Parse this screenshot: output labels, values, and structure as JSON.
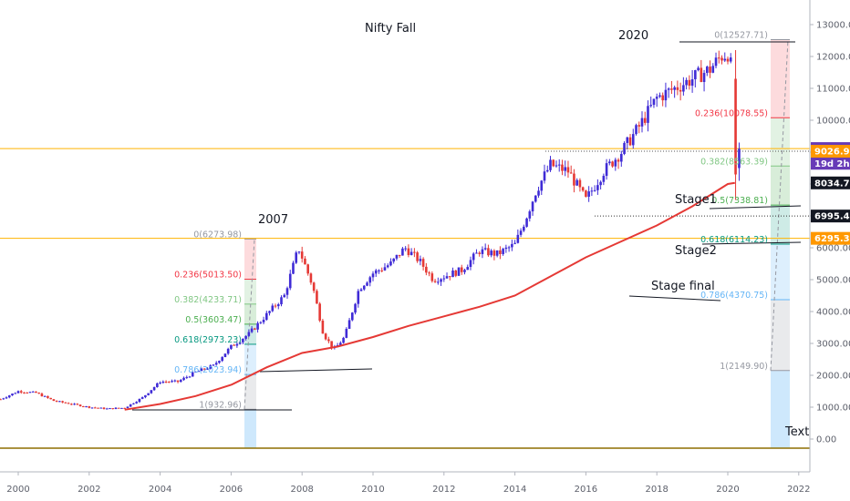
{
  "chart_data": {
    "type": "candlestick",
    "title": "Nifty Fall",
    "y_axis": {
      "ticks": [
        0,
        1000,
        2000,
        3000,
        4000,
        5000,
        6000,
        7000,
        8000,
        9000,
        10000,
        11000,
        12000,
        13000
      ],
      "tick_labels": [
        "0.00",
        "1000.00",
        "2000.00",
        "3000.00",
        "4000.00",
        "5000.00",
        "6000.00",
        "7000.00",
        "8000.00",
        "9000.00",
        "10000.00",
        "11000.00",
        "12000.00",
        "13000.00"
      ],
      "range": [
        -300,
        13600
      ],
      "position": "right"
    },
    "x_axis": {
      "ticks": [
        2000,
        2002,
        2004,
        2006,
        2008,
        2010,
        2012,
        2014,
        2016,
        2018,
        2020,
        2022
      ],
      "tick_labels": [
        "2000",
        "2002",
        "2004",
        "2006",
        "2008",
        "2010",
        "2012",
        "2014",
        "2016",
        "2018",
        "2020",
        "2022"
      ],
      "range": [
        1999.4,
        2022.2
      ]
    },
    "series": [
      {
        "style": "candles",
        "x": [
          1999.5,
          2000.0,
          2000.5,
          2001.0,
          2001.5,
          2002.0,
          2002.5,
          2003.0,
          2003.5,
          2004.0,
          2004.5,
          2005.0,
          2005.5,
          2006.0,
          2006.5,
          2007.0,
          2007.5,
          2007.9,
          2008.3,
          2008.6,
          2008.9,
          2009.2,
          2009.6,
          2010.0,
          2010.5,
          2010.9,
          2011.3,
          2011.7,
          2012.0,
          2012.5,
          2013.0,
          2013.5,
          2014.0,
          2014.3,
          2014.6,
          2015.0,
          2015.5,
          2016.0,
          2016.5,
          2017.0,
          2017.5,
          2018.0,
          2018.5,
          2019.0,
          2019.5,
          2019.8,
          2020.0,
          2020.2,
          2020.3
        ],
        "values": [
          1250,
          1500,
          1450,
          1200,
          1100,
          1000,
          950,
          980,
          1300,
          1800,
          1800,
          2100,
          2300,
          2900,
          3300,
          3900,
          4500,
          6000,
          4800,
          3300,
          2800,
          3200,
          4700,
          5200,
          5500,
          6000,
          5600,
          5000,
          5100,
          5300,
          5900,
          5800,
          6100,
          6900,
          7800,
          8600,
          8400,
          7500,
          8400,
          9000,
          9800,
          10700,
          11000,
          11300,
          11600,
          12000,
          12100,
          11200,
          9000
        ]
      },
      {
        "name": "",
        "style": "line",
        "color": "#e53935",
        "x": [
          2003.0,
          2004.0,
          2005.0,
          2006.0,
          2007.0,
          2008.0,
          2009.0,
          2010.0,
          2011.0,
          2012.0,
          2013.0,
          2014.0,
          2015.0,
          2016.0,
          2017.0,
          2018.0,
          2019.0,
          2020.0,
          2020.2
        ],
        "values": [
          920,
          1100,
          1350,
          1700,
          2250,
          2700,
          2900,
          3200,
          3550,
          3850,
          4150,
          4500,
          5100,
          5700,
          6200,
          6700,
          7300,
          8000,
          8034
        ]
      }
    ],
    "fibonacci_2007": {
      "labels": [
        "0(6273.98)",
        "0.236(5013.50)",
        "0.382(4233.71)",
        "0.5(3603.47)",
        "0.618(2973.23)",
        "0.786(2023.94)",
        "1(932.96)"
      ],
      "levels": [
        6273.98,
        5013.5,
        4233.71,
        3603.47,
        2973.23,
        2023.94,
        932.96
      ],
      "colors": [
        "#9598a1",
        "#f23645",
        "#81c784",
        "#4caf50",
        "#089981",
        "#64b5f6",
        "#9598a1"
      ]
    },
    "fibonacci_2020": {
      "labels": [
        "0(12527.71)",
        "0.236(10078.55)",
        "0.382(8563.39)",
        "0.5(7338.81)",
        "0.618(6114.23)",
        "0.786(4370.75)",
        "1(2149.90)"
      ],
      "levels": [
        12527.71,
        10078.55,
        8563.39,
        7338.81,
        6114.23,
        4370.75,
        2149.9
      ],
      "colors": [
        "#9598a1",
        "#f23645",
        "#81c784",
        "#4caf50",
        "#089981",
        "#64b5f6",
        "#9598a1"
      ]
    },
    "annotations": [
      "2007",
      "2020",
      "Stage1",
      "Stage2",
      "Stage final",
      "Text"
    ],
    "horizontal_levels": [
      9111.9,
      6295.31
    ],
    "price_tags": [
      {
        "text": "9111.90",
        "value": 9111.9,
        "color": "#673ab7"
      },
      {
        "text": "19d 2h",
        "value": 8650,
        "color": "#673ab7"
      },
      {
        "text": "9026.94",
        "value": 9026.94,
        "color": "#ff9800"
      },
      {
        "text": "8034.79",
        "value": 8034.79,
        "color": "#131722"
      },
      {
        "text": "6995.46",
        "value": 6995.46,
        "color": "#131722"
      },
      {
        "text": "6295.31",
        "value": 6295.31,
        "color": "#ff9800"
      }
    ],
    "grid": false
  }
}
